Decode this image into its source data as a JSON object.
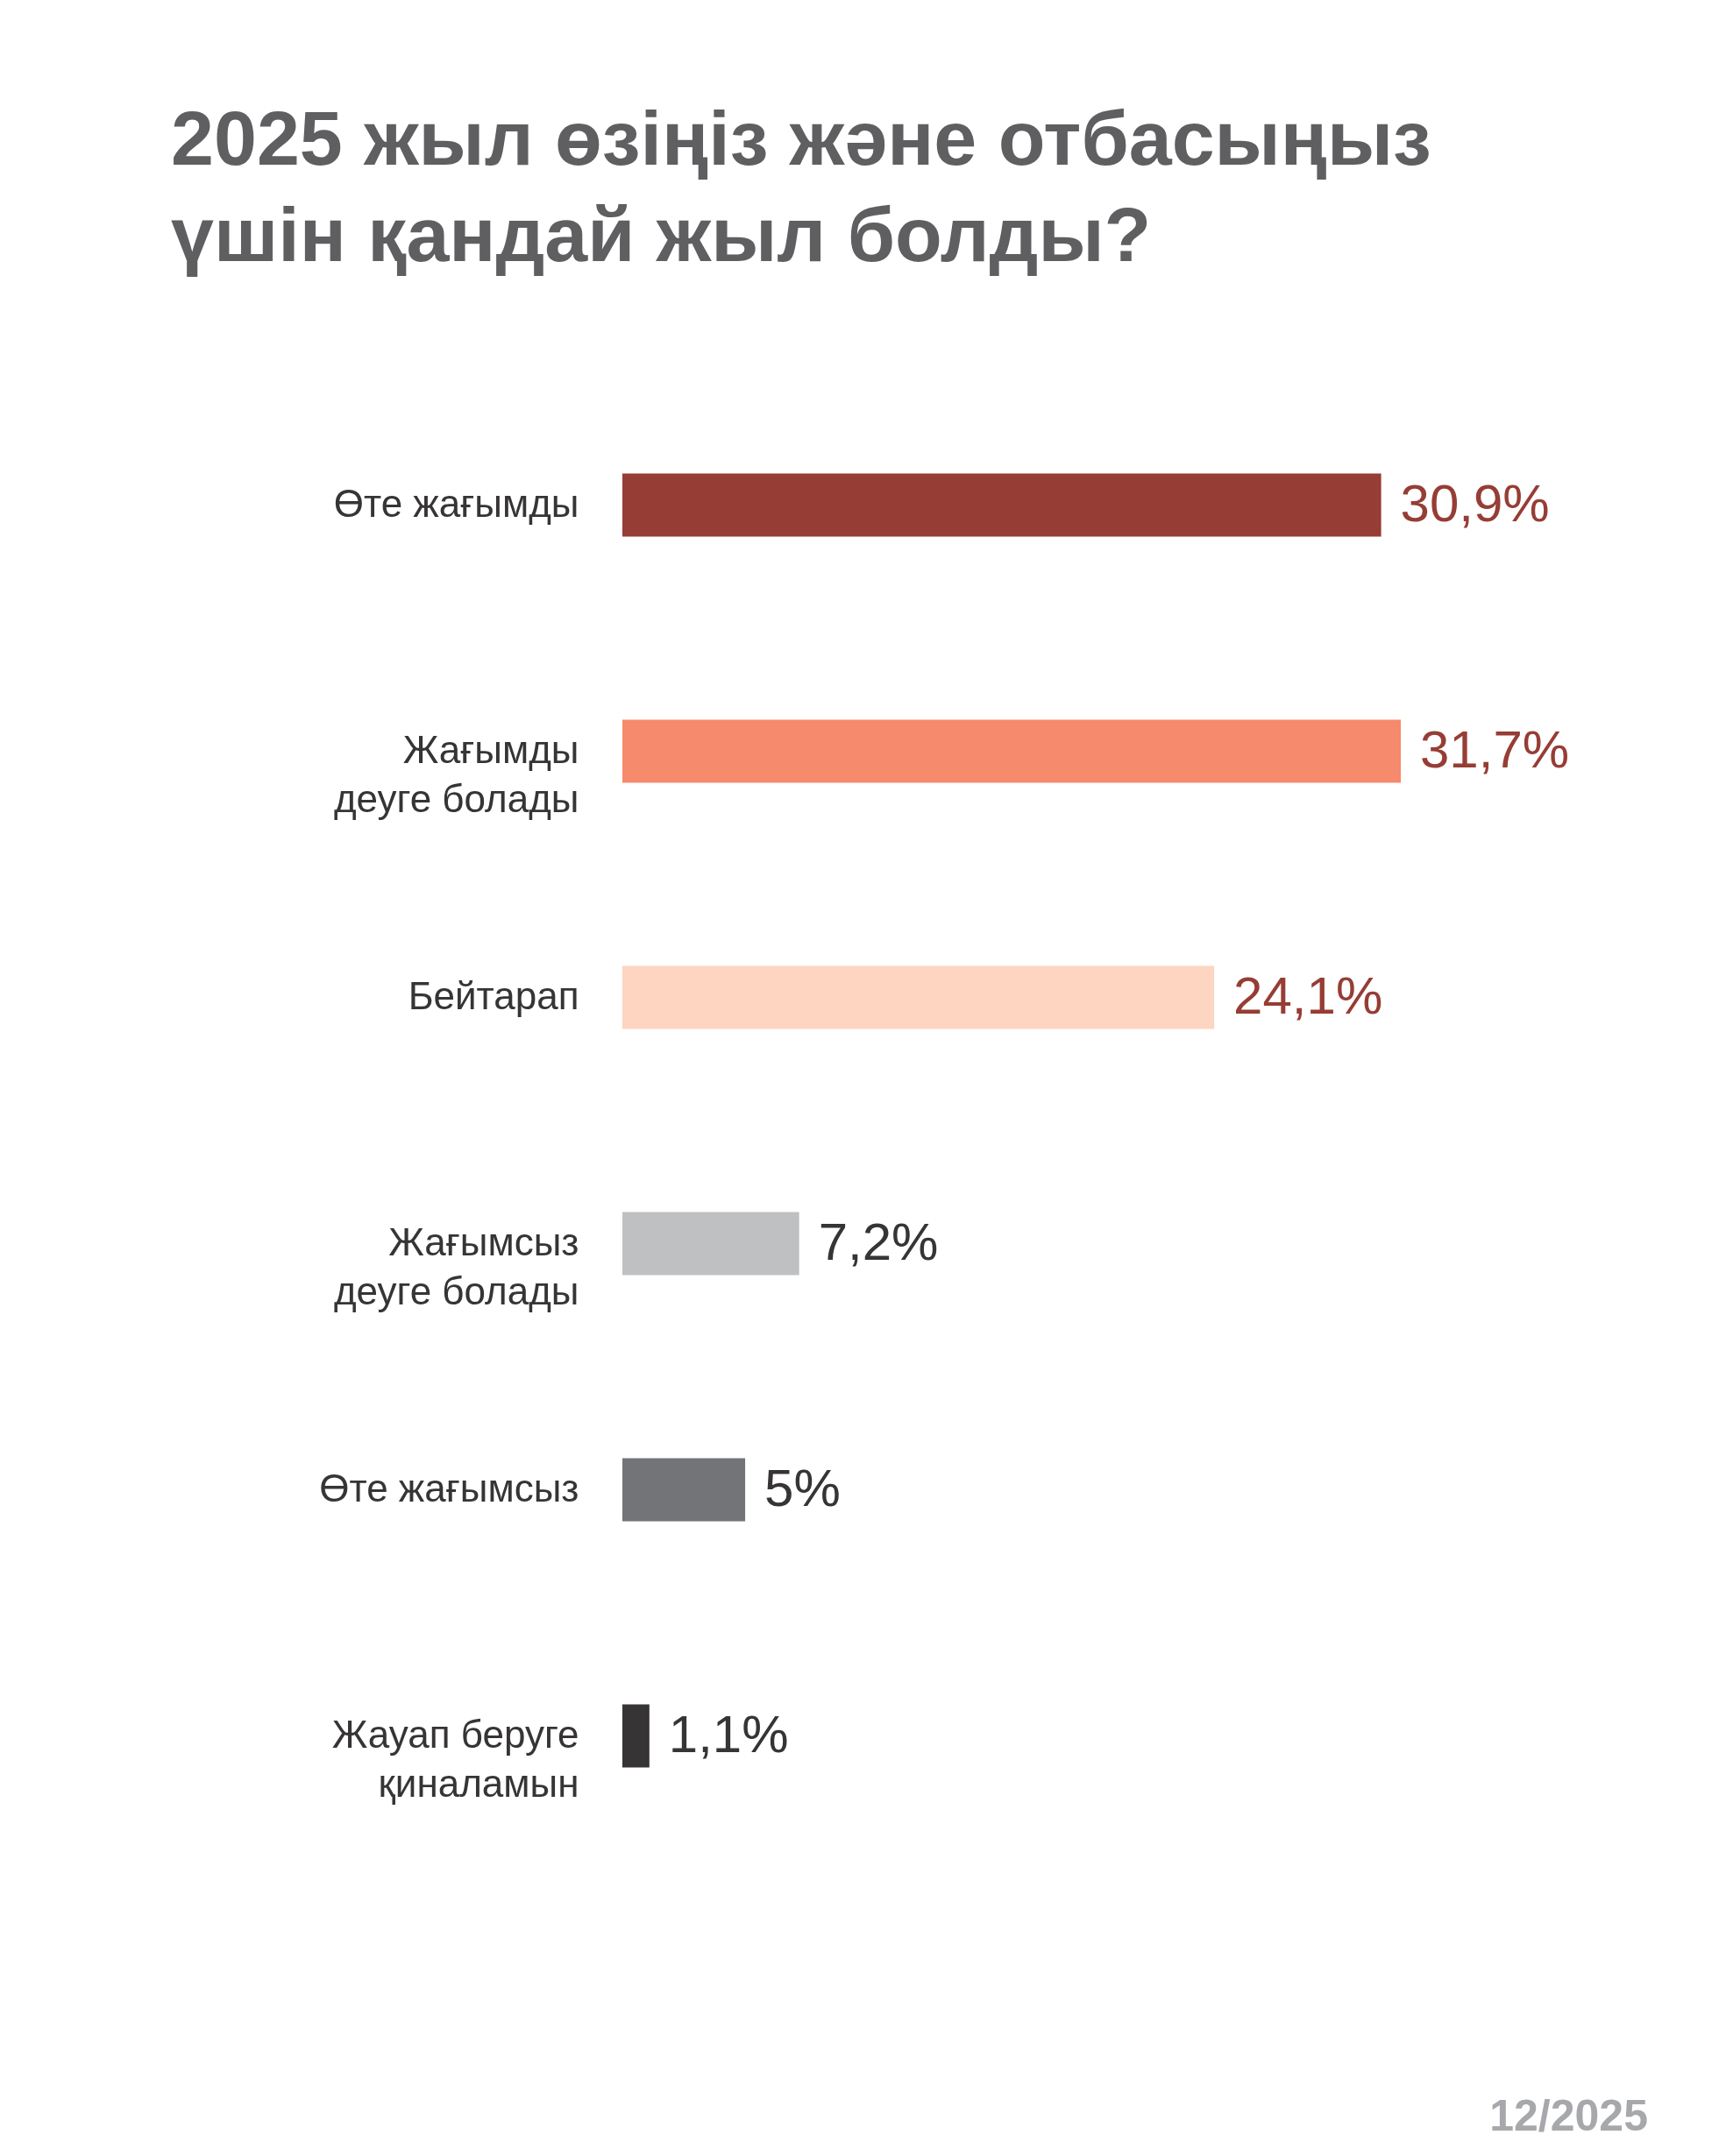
{
  "chart_data": {
    "type": "bar",
    "orientation": "horizontal",
    "title": "2025 жыл өзіңіз және отбасыңыз үшін қандай жыл болды?",
    "categories": [
      "Өте жағымды",
      "Жағымды деуге болады",
      "Бейтарап",
      "Жағымсыз деуге болады",
      "Өте жағымсыз",
      "Жауап беруге қиналамын"
    ],
    "values": [
      30.9,
      31.7,
      24.1,
      7.2,
      5,
      1.1
    ],
    "colors": [
      "#963d35",
      "#f58a6c",
      "#fdd5c0",
      "#bfc0c2",
      "#737477",
      "#363435"
    ],
    "value_labels": [
      "30,9%",
      "31,7%",
      "24,1%",
      "7,2%",
      "5%",
      "1,1%"
    ],
    "tick_labels": "y",
    "annotations": [
      "12/2025"
    ]
  }
}
